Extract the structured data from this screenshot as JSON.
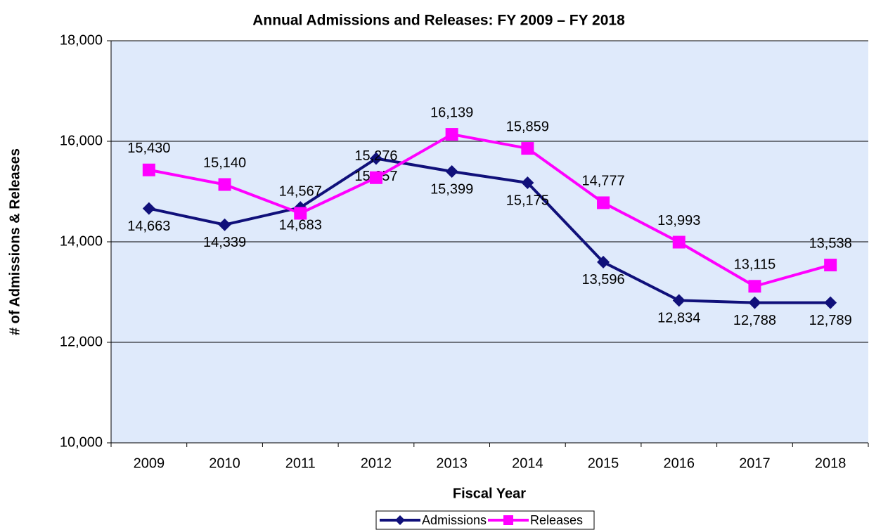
{
  "chart_data": {
    "type": "line",
    "title": "Annual Admissions and Releases: FY 2009 – FY 2018",
    "x_label": "Fiscal Year",
    "y_label": "# of Admissions & Releases",
    "categories": [
      "2009",
      "2010",
      "2011",
      "2012",
      "2013",
      "2014",
      "2015",
      "2016",
      "2017",
      "2018"
    ],
    "series": [
      {
        "name": "Admissions",
        "color": "#10107a",
        "marker": "diamond",
        "values": [
          14663,
          14339,
          14683,
          15657,
          15399,
          15175,
          13596,
          12834,
          12788,
          12789
        ],
        "value_labels": [
          "14,663",
          "14,339",
          "14,683",
          "15,657",
          "15,399",
          "15,175",
          "13,596",
          "12,834",
          "12,788",
          "12,789"
        ]
      },
      {
        "name": "Releases",
        "color": "#ff00ff",
        "marker": "square",
        "values": [
          15430,
          15140,
          14567,
          15276,
          16139,
          15859,
          14777,
          13993,
          13115,
          13538
        ],
        "value_labels": [
          "15,430",
          "15,140",
          "14,567",
          "15,276",
          "16,139",
          "15,859",
          "14,777",
          "13,993",
          "13,115",
          "13,538"
        ]
      }
    ],
    "ylim": [
      10000,
      18000
    ],
    "yticks": [
      {
        "value": 10000,
        "label": "10,000"
      },
      {
        "value": 12000,
        "label": "12,000"
      },
      {
        "value": 14000,
        "label": "14,000"
      },
      {
        "value": 16000,
        "label": "16,000"
      },
      {
        "value": 18000,
        "label": "18,000"
      }
    ],
    "grid": true,
    "legend": "bottom"
  }
}
